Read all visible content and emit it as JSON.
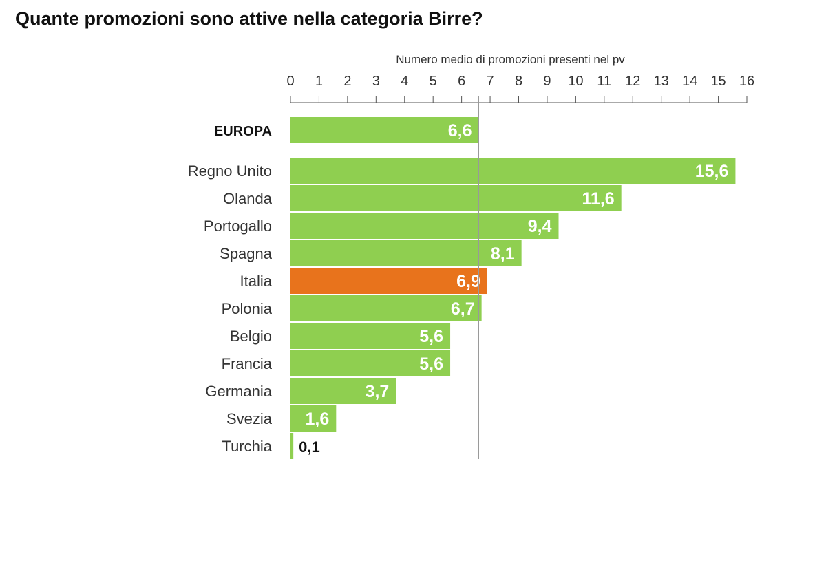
{
  "chart_data": {
    "type": "bar",
    "orientation": "horizontal",
    "title": "Quante promozioni sono attive nella categoria Birre?",
    "xlabel": "Numero medio di promozioni presenti nel pv",
    "xlim": [
      0,
      16
    ],
    "ticks": [
      "0",
      "1",
      "2",
      "3",
      "4",
      "5",
      "6",
      "7",
      "8",
      "9",
      "10",
      "11",
      "12",
      "13",
      "14",
      "15",
      "16"
    ],
    "reference_line": 6.6,
    "colors": {
      "default": "#8fcf50",
      "highlight": "#e8731c"
    },
    "categories": [
      "EUROPA",
      "Regno Unito",
      "Olanda",
      "Portogallo",
      "Spagna",
      "Italia",
      "Polonia",
      "Belgio",
      "Francia",
      "Germania",
      "Svezia",
      "Turchia"
    ],
    "values": [
      6.6,
      15.6,
      11.6,
      9.4,
      8.1,
      6.9,
      6.7,
      5.6,
      5.6,
      3.7,
      1.6,
      0.1
    ],
    "value_labels": [
      "6,6",
      "15,6",
      "11,6",
      "9,4",
      "8,1",
      "6,9",
      "6,7",
      "5,6",
      "5,6",
      "3,7",
      "1,6",
      "0,1"
    ],
    "highlight": [
      "Italia"
    ],
    "bold_categories": [
      "EUROPA"
    ]
  }
}
